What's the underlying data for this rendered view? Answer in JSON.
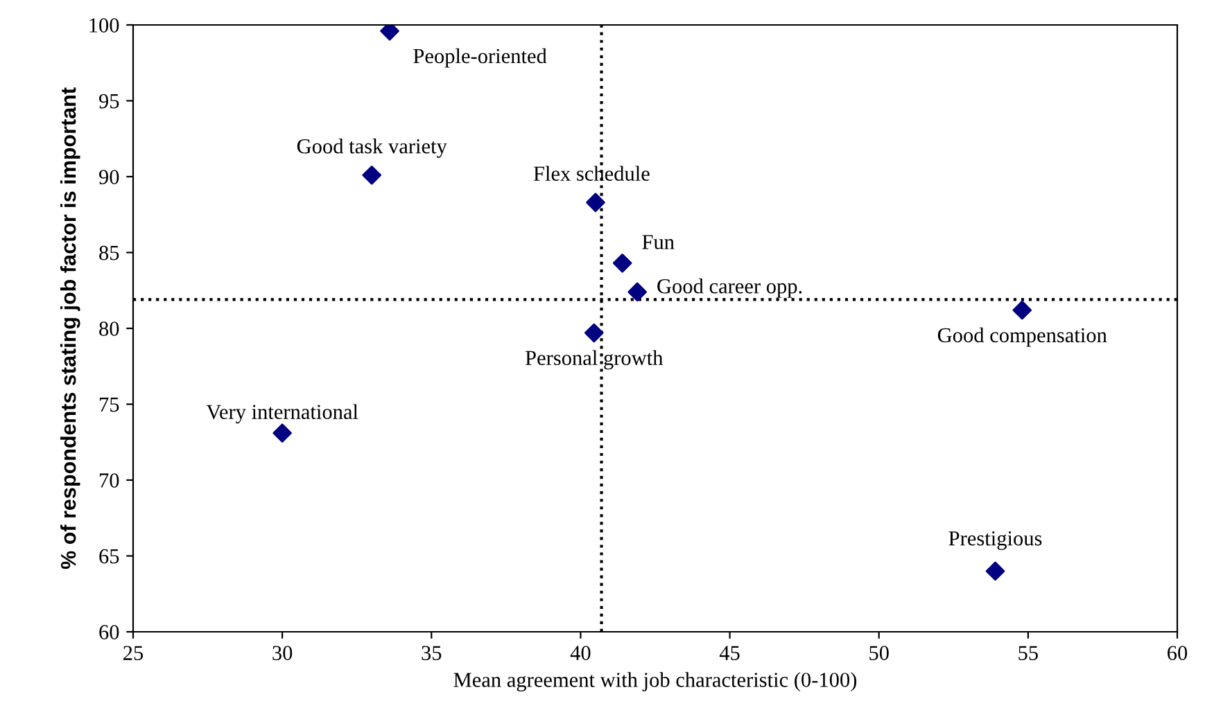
{
  "chart_data": {
    "type": "scatter",
    "xlabel": "Mean agreement with job characteristic (0-100)",
    "ylabel": "% of respondents stating job factor is important",
    "x": [
      33.6,
      33.0,
      40.5,
      41.4,
      41.9,
      40.45,
      54.8,
      30.0,
      53.9
    ],
    "series": [
      {
        "color": "#000080",
        "values": [
          99.6,
          90.1,
          88.3,
          84.3,
          82.4,
          79.7,
          81.2,
          73.1,
          64.0
        ]
      }
    ],
    "annotations": [
      {
        "text": "People-oriented",
        "x": 33.6,
        "y": 99.6
      },
      {
        "text": "Good task variety",
        "x": 33.0,
        "y": 90.1
      },
      {
        "text": "Flex schedule",
        "x": 40.5,
        "y": 88.3
      },
      {
        "text": "Fun",
        "x": 41.4,
        "y": 84.3
      },
      {
        "text": "Good career opp.",
        "x": 41.9,
        "y": 82.4
      },
      {
        "text": "Personal growth",
        "x": 40.45,
        "y": 79.7
      },
      {
        "text": "Good compensation",
        "x": 54.8,
        "y": 81.2
      },
      {
        "text": "Very international",
        "x": 30.0,
        "y": 73.1
      },
      {
        "text": "Prestigious",
        "x": 53.9,
        "y": 64.0
      }
    ],
    "ref_lines": [
      {
        "axis": "x",
        "value": 40.7,
        "line_style": "dotted",
        "color": "#000000"
      },
      {
        "axis": "y",
        "value": 81.9,
        "line_style": "dotted",
        "color": "#000000"
      }
    ],
    "xlim": [
      25,
      60
    ],
    "xticks": [
      25,
      30,
      35,
      40,
      45,
      50,
      55,
      60
    ],
    "ylim": [
      60,
      100
    ],
    "yticks": [
      60,
      65,
      70,
      75,
      80,
      85,
      90,
      95,
      100
    ],
    "marker": "diamond",
    "grid": false
  }
}
